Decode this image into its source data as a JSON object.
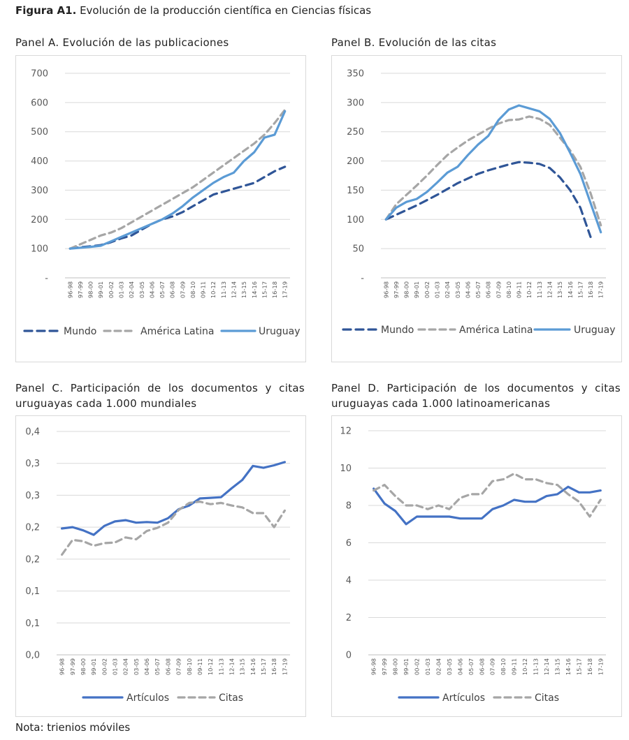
{
  "figure": {
    "label": "Figura A1.",
    "title": "Evolución de la producción científica en Ciencias físicas",
    "note": "Nota: trienios móviles"
  },
  "panels": {
    "a": {
      "title": "Panel A. Evolución de las publicaciones"
    },
    "b": {
      "title": "Panel B. Evolución de las citas"
    },
    "c": {
      "title": "Panel C. Participación de los documentos y citas uruguayas cada 1.000 mundiales"
    },
    "d": {
      "title": "Panel D. Participación de los documentos y citas uruguayas cada 1.000 latinoamericanas"
    }
  },
  "chart_data": [
    {
      "id": "a",
      "type": "line",
      "categories": [
        "96-98",
        "97-99",
        "98-00",
        "99-01",
        "00-02",
        "01-03",
        "02-04",
        "03-05",
        "04-06",
        "05-07",
        "06-08",
        "07-09",
        "08-10",
        "09-11",
        "10-12",
        "11-13",
        "12-14",
        "13-15",
        "14-16",
        "15-17",
        "16-18",
        "17-19"
      ],
      "yticks": [
        "-",
        "100",
        "200",
        "300",
        "400",
        "500",
        "600",
        "700"
      ],
      "ylim": [
        0,
        700
      ],
      "series": [
        {
          "name": "Mundo",
          "style": "dash-dark",
          "color": "#2f5597",
          "values": [
            100,
            105,
            108,
            112,
            122,
            135,
            145,
            165,
            185,
            200,
            210,
            225,
            245,
            265,
            285,
            295,
            305,
            315,
            325,
            345,
            365,
            380
          ]
        },
        {
          "name": "América Latina",
          "style": "dash-gray",
          "color": "#a6a6a6",
          "values": [
            100,
            115,
            130,
            145,
            155,
            170,
            190,
            210,
            230,
            250,
            270,
            290,
            310,
            335,
            360,
            385,
            410,
            435,
            460,
            490,
            530,
            575
          ]
        },
        {
          "name": "Uruguay",
          "style": "solid-light",
          "color": "#5b9bd5",
          "values": [
            100,
            103,
            106,
            110,
            125,
            140,
            155,
            170,
            185,
            200,
            220,
            245,
            275,
            300,
            325,
            345,
            360,
            400,
            430,
            480,
            490,
            570
          ]
        }
      ],
      "grid": true,
      "legend": "bottom"
    },
    {
      "id": "b",
      "type": "line",
      "categories": [
        "96-98",
        "97-99",
        "98-00",
        "99-01",
        "00-02",
        "01-03",
        "02-04",
        "03-05",
        "04-06",
        "05-07",
        "06-08",
        "07-09",
        "08-10",
        "09-11",
        "10-12",
        "11-13",
        "12-14",
        "13-15",
        "14-16",
        "15-17",
        "16-18",
        "17-19"
      ],
      "yticks": [
        "-",
        "50",
        "100",
        "150",
        "200",
        "250",
        "300",
        "350"
      ],
      "ylim": [
        0,
        350
      ],
      "series": [
        {
          "name": "Mundo",
          "style": "dash-dark",
          "color": "#2f5597",
          "values": [
            100,
            108,
            116,
            124,
            133,
            142,
            152,
            162,
            170,
            178,
            184,
            189,
            194,
            198,
            197,
            195,
            188,
            172,
            150,
            120,
            70,
            null
          ]
        },
        {
          "name": "América Latina",
          "style": "dash-gray",
          "color": "#a6a6a6",
          "values": [
            100,
            126,
            142,
            158,
            175,
            193,
            210,
            223,
            235,
            245,
            255,
            264,
            270,
            271,
            276,
            272,
            262,
            240,
            218,
            190,
            145,
            90
          ]
        },
        {
          "name": "Uruguay",
          "style": "solid-light",
          "color": "#5b9bd5",
          "values": [
            100,
            120,
            130,
            135,
            147,
            163,
            180,
            190,
            210,
            228,
            243,
            270,
            288,
            295,
            290,
            285,
            272,
            248,
            214,
            178,
            128,
            78
          ]
        }
      ],
      "grid": true,
      "legend": "bottom"
    },
    {
      "id": "c",
      "type": "line",
      "categories": [
        "96-98",
        "97-99",
        "98-00",
        "99-01",
        "00-02",
        "01-03",
        "02-04",
        "03-05",
        "04-06",
        "05-07",
        "06-08",
        "07-09",
        "08-10",
        "09-11",
        "10-12",
        "11-13",
        "12-14",
        "13-15",
        "14-16",
        "15-17",
        "16-18",
        "17-19"
      ],
      "yticks": [
        "0,0",
        "0,1",
        "0,1",
        "0,2",
        "0,2",
        "0,3",
        "0,3",
        "0,4"
      ],
      "ylim": [
        0,
        0.35
      ],
      "series": [
        {
          "name": "Artículos",
          "style": "solid-dark",
          "color": "#4472c4",
          "values": [
            0.198,
            0.2,
            0.195,
            0.188,
            0.202,
            0.209,
            0.211,
            0.207,
            0.208,
            0.207,
            0.214,
            0.228,
            0.234,
            0.245,
            0.246,
            0.247,
            0.261,
            0.274,
            0.296,
            0.293,
            0.297,
            0.302
          ]
        },
        {
          "name": "Citas",
          "style": "dash-gray",
          "color": "#a6a6a6",
          "values": [
            0.157,
            0.18,
            0.178,
            0.171,
            0.175,
            0.176,
            0.184,
            0.181,
            0.194,
            0.199,
            0.207,
            0.227,
            0.238,
            0.24,
            0.236,
            0.238,
            0.234,
            0.231,
            0.222,
            0.222,
            0.2,
            0.226
          ]
        }
      ],
      "grid": true,
      "legend": "bottom"
    },
    {
      "id": "d",
      "type": "line",
      "categories": [
        "96-98",
        "97-99",
        "98-00",
        "99-01",
        "00-02",
        "01-03",
        "02-04",
        "03-05",
        "04-06",
        "05-07",
        "06-08",
        "07-09",
        "08-10",
        "09-11",
        "10-12",
        "11-13",
        "12-14",
        "13-15",
        "14-16",
        "15-17",
        "16-18",
        "17-19"
      ],
      "yticks": [
        "0",
        "2",
        "4",
        "6",
        "8",
        "10",
        "12"
      ],
      "ylim": [
        0,
        12
      ],
      "series": [
        {
          "name": "Artículos",
          "style": "solid-dark",
          "color": "#4472c4",
          "values": [
            8.9,
            8.1,
            7.7,
            7.0,
            7.4,
            7.4,
            7.4,
            7.4,
            7.3,
            7.3,
            7.3,
            7.8,
            8.0,
            8.3,
            8.2,
            8.2,
            8.5,
            8.6,
            9.0,
            8.7,
            8.7,
            8.8
          ]
        },
        {
          "name": "Citas",
          "style": "dash-gray",
          "color": "#a6a6a6",
          "values": [
            8.8,
            9.1,
            8.5,
            8.0,
            8.0,
            7.8,
            8.0,
            7.8,
            8.4,
            8.6,
            8.6,
            9.3,
            9.4,
            9.7,
            9.4,
            9.4,
            9.2,
            9.1,
            8.6,
            8.2,
            7.4,
            8.3
          ]
        }
      ],
      "grid": true,
      "legend": "bottom"
    }
  ]
}
